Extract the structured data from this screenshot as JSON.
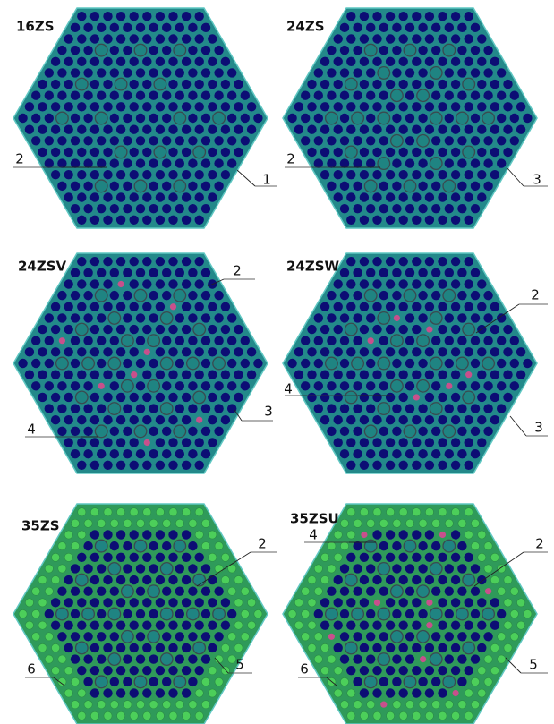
{
  "panels": [
    {
      "title": "16ZS",
      "callouts": [
        {
          "label": "2"
        },
        {
          "label": "1"
        }
      ]
    },
    {
      "title": "24ZS",
      "callouts": [
        {
          "label": "2"
        },
        {
          "label": "3"
        }
      ]
    },
    {
      "title": "24ZSV",
      "callouts": [
        {
          "label": "2"
        },
        {
          "label": "3"
        },
        {
          "label": "4"
        }
      ]
    },
    {
      "title": "24ZSW",
      "callouts": [
        {
          "label": "2"
        },
        {
          "label": "3"
        },
        {
          "label": "4"
        }
      ]
    },
    {
      "title": "35ZS",
      "callouts": [
        {
          "label": "2"
        },
        {
          "label": "6"
        },
        {
          "label": "5"
        }
      ]
    },
    {
      "title": "35ZSU",
      "callouts": [
        {
          "label": "4"
        },
        {
          "label": "2"
        },
        {
          "label": "6"
        },
        {
          "label": "5"
        }
      ]
    }
  ]
}
